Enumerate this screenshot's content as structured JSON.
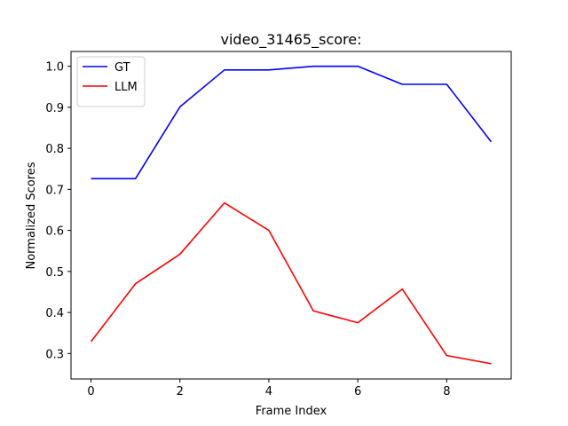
{
  "chart_data": {
    "type": "line",
    "title": "video_31465_score:",
    "xlabel": "Frame Index",
    "ylabel": "Normalized Scores",
    "x": [
      0,
      1,
      2,
      3,
      4,
      5,
      6,
      7,
      8,
      9
    ],
    "xlim": [
      -0.45,
      9.45
    ],
    "ylim": [
      0.238,
      1.036
    ],
    "xticks": [
      0,
      2,
      4,
      6,
      8
    ],
    "yticks": [
      0.3,
      0.4,
      0.5,
      0.6,
      0.7,
      0.8,
      0.9,
      1.0
    ],
    "ytick_labels": [
      "0.3",
      "0.4",
      "0.5",
      "0.6",
      "0.7",
      "0.8",
      "0.9",
      "1.0"
    ],
    "grid": false,
    "legend_position": "top-left",
    "series": [
      {
        "name": "GT",
        "color": "#0000ff",
        "values": [
          0.726,
          0.726,
          0.901,
          0.991,
          0.991,
          1.0,
          1.0,
          0.956,
          0.956,
          0.816
        ]
      },
      {
        "name": "LLM",
        "color": "#ff0000",
        "values": [
          0.329,
          0.47,
          0.542,
          0.667,
          0.6,
          0.404,
          0.375,
          0.457,
          0.295,
          0.275
        ]
      }
    ]
  }
}
